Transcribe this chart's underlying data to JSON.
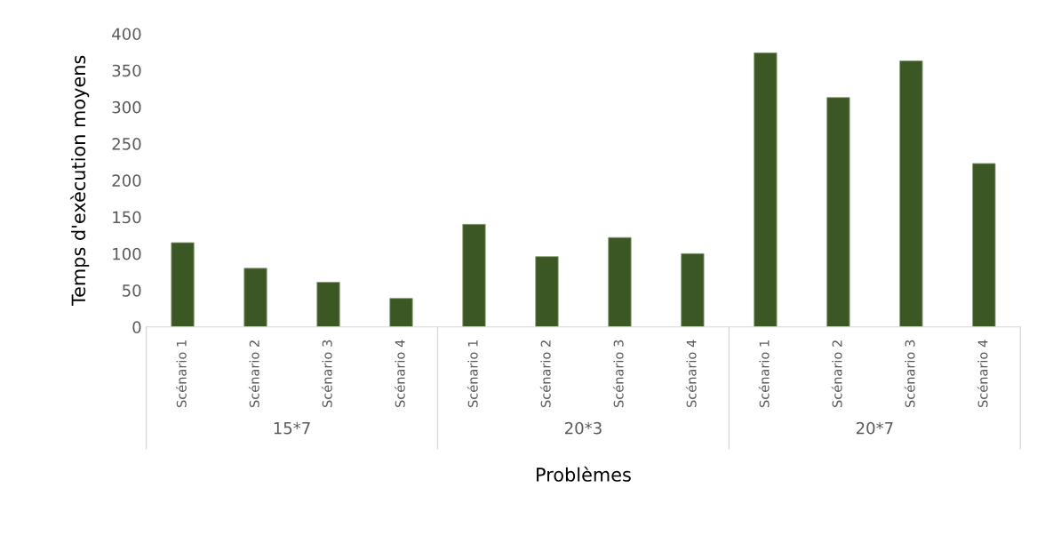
{
  "chart_data": {
    "type": "bar",
    "xlabel": "Problèmes",
    "ylabel": "Temps d'exècution moyens",
    "categories": [
      "Scénario 1",
      "Scénario 2",
      "Scénario 3",
      "Scénario 4",
      "Scénario 1",
      "Scénario 2",
      "Scénario 3",
      "Scénario 4",
      "Scénario 1",
      "Scénario 2",
      "Scénario 3",
      "Scénario 4"
    ],
    "values": [
      115,
      80,
      61,
      39,
      140,
      96,
      122,
      100,
      374,
      313,
      363,
      223
    ],
    "color": "#3b5724",
    "annotations": [
      "15*7",
      "20*3",
      "20*7"
    ],
    "ylim": [
      0,
      400
    ],
    "yticks": [
      0,
      50,
      100,
      150,
      200,
      250,
      300,
      350,
      400
    ],
    "grid": false,
    "legend": false
  }
}
